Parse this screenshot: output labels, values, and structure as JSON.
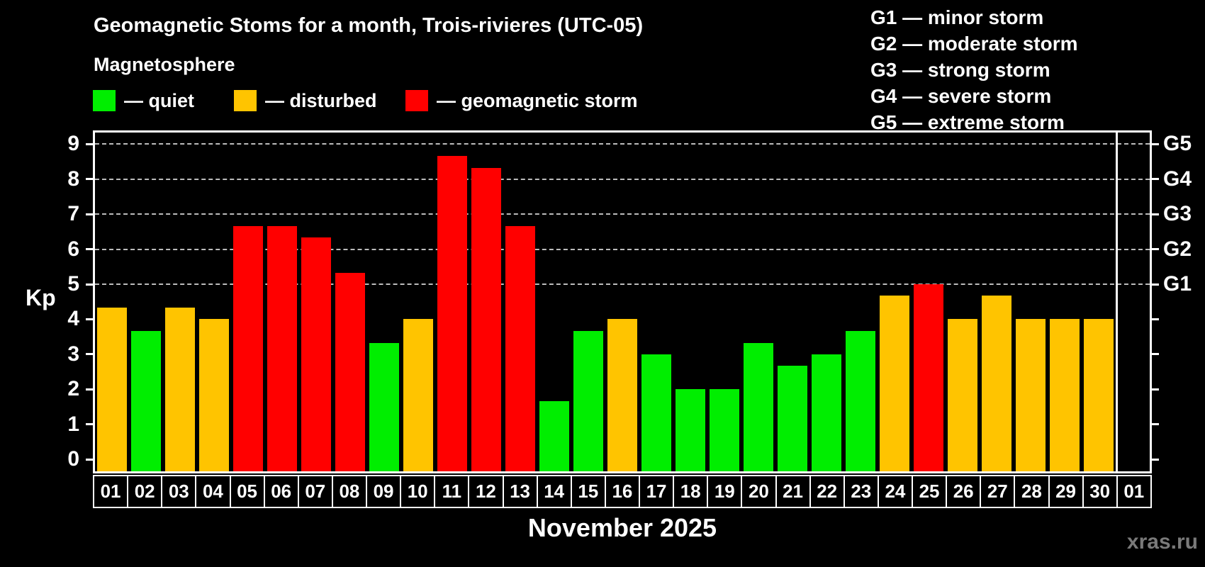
{
  "title": "Geomagnetic Stoms for a month, Trois-rivieres (UTC-05)",
  "subtitle": "Magnetosphere",
  "legend": {
    "items": [
      {
        "name": "quiet",
        "label": "— quiet",
        "color": "#00ee00"
      },
      {
        "name": "disturbed",
        "label": "— disturbed",
        "color": "#ffc400"
      },
      {
        "name": "storm",
        "label": "— geomagnetic storm",
        "color": "#ff0000"
      }
    ]
  },
  "g_legend": {
    "items": [
      "G1 — minor storm",
      "G2 — moderate storm",
      "G3 — strong storm",
      "G4 — severe storm",
      "G5 — extreme storm"
    ]
  },
  "axis": {
    "y_label": "Kp"
  },
  "footer": {
    "month_label": "November 2025",
    "watermark": "xras.ru"
  },
  "chart_data": {
    "type": "bar",
    "title": "Geomagnetic Stoms for a month, Trois-rivieres (UTC-05)",
    "subtitle": "Magnetosphere",
    "xlabel": "November 2025",
    "ylabel": "Kp",
    "ylim": [
      0,
      9.4
    ],
    "yticks": [
      0,
      1,
      2,
      3,
      4,
      5,
      6,
      7,
      8,
      9
    ],
    "gridlines_at": [
      5,
      6,
      7,
      8,
      9
    ],
    "grid": "horizontal-dashed",
    "legend_position": "top-left",
    "right_labels": [
      {
        "kp": 5,
        "label": "G1"
      },
      {
        "kp": 6,
        "label": "G2"
      },
      {
        "kp": 7,
        "label": "G3"
      },
      {
        "kp": 8,
        "label": "G4"
      },
      {
        "kp": 9,
        "label": "G5"
      }
    ],
    "categories": [
      "01",
      "02",
      "03",
      "04",
      "05",
      "06",
      "07",
      "08",
      "09",
      "10",
      "11",
      "12",
      "13",
      "14",
      "15",
      "16",
      "17",
      "18",
      "19",
      "20",
      "21",
      "22",
      "23",
      "24",
      "25",
      "26",
      "27",
      "28",
      "29",
      "30",
      "01"
    ],
    "series": [
      {
        "name": "Kp index",
        "values": [
          4.33,
          3.67,
          4.33,
          4.0,
          6.67,
          6.67,
          6.33,
          5.33,
          3.33,
          4.0,
          8.67,
          8.33,
          6.67,
          1.67,
          3.67,
          4.0,
          3.0,
          2.0,
          2.0,
          3.33,
          2.67,
          3.0,
          3.67,
          4.67,
          5.0,
          4.0,
          4.67,
          4.0,
          4.0,
          4.0,
          null
        ]
      }
    ],
    "bar_status": [
      "disturbed",
      "quiet",
      "disturbed",
      "disturbed",
      "storm",
      "storm",
      "storm",
      "storm",
      "quiet",
      "disturbed",
      "storm",
      "storm",
      "storm",
      "quiet",
      "quiet",
      "disturbed",
      "quiet",
      "quiet",
      "quiet",
      "quiet",
      "quiet",
      "quiet",
      "quiet",
      "disturbed",
      "storm",
      "disturbed",
      "disturbed",
      "disturbed",
      "disturbed",
      "disturbed",
      null
    ],
    "status_colors": {
      "quiet": "#00ee00",
      "disturbed": "#ffc400",
      "storm": "#ff0000"
    },
    "month_boundary_before_index": 30
  }
}
